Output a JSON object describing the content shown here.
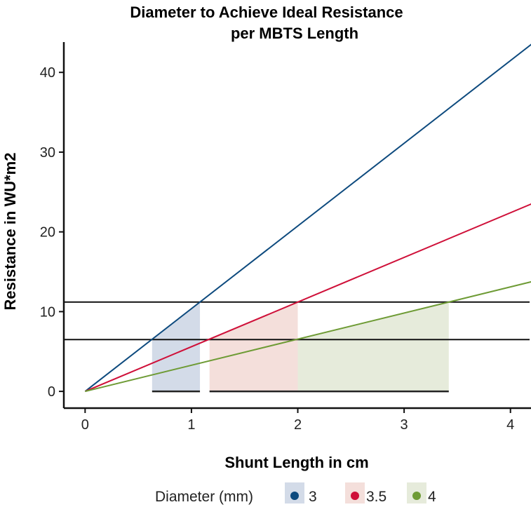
{
  "chart_data": {
    "type": "line",
    "title": "Diameter to Achieve Ideal Resistance",
    "subtitle": "per MBTS Length",
    "xlabel": "Shunt Length in cm",
    "ylabel": "Resistance in WU*m2",
    "xlim": [
      -0.2,
      4.18
    ],
    "ylim": [
      -2.1,
      43.8
    ],
    "xticks": [
      0,
      1,
      2,
      3,
      4
    ],
    "yticks": [
      0,
      10,
      20,
      30,
      40
    ],
    "grid": false,
    "legend": {
      "title": "Diameter (mm)",
      "placement": "bottom"
    },
    "series": [
      {
        "name": "3",
        "color": "#0d4a7e",
        "fill": "#d3dbe8",
        "x": [
          0,
          4.2
        ],
        "y": [
          0,
          43.6
        ],
        "slope": 10.37,
        "shade_x": [
          0.63,
          1.08
        ]
      },
      {
        "name": "3.5",
        "color": "#cf1039",
        "fill": "#f4dfdb",
        "x": [
          0,
          4.2
        ],
        "y": [
          0,
          23.5
        ],
        "slope": 5.6,
        "shade_x": [
          1.17,
          2.0
        ]
      },
      {
        "name": "4",
        "color": "#6e9b35",
        "fill": "#e6ebdb",
        "x": [
          0,
          4.2
        ],
        "y": [
          0,
          13.75
        ],
        "slope": 3.275,
        "shade_x": [
          2.0,
          3.42
        ]
      }
    ],
    "reference_lines_y": [
      6.5,
      11.2
    ],
    "baseline_segments": [
      [
        0.63,
        1.08
      ],
      [
        1.17,
        3.42
      ]
    ]
  }
}
